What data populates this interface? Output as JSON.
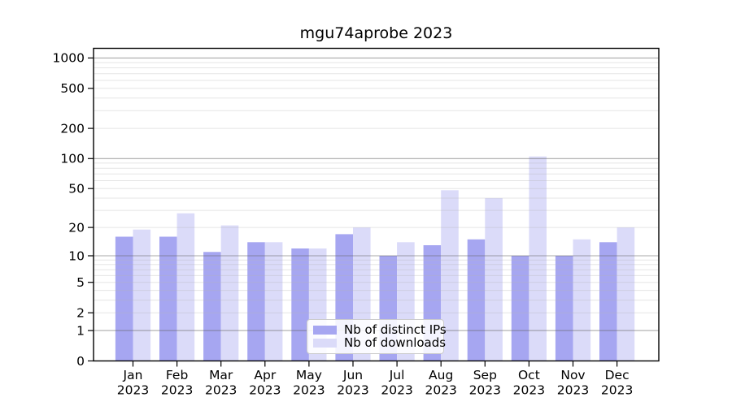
{
  "title": "mgu74aprobe 2023",
  "chart_data": {
    "type": "bar",
    "title": "mgu74aprobe 2023",
    "categories": [
      "Jan",
      "Feb",
      "Mar",
      "Apr",
      "May",
      "Jun",
      "Jul",
      "Aug",
      "Sep",
      "Oct",
      "Nov",
      "Dec"
    ],
    "x_year": "2023",
    "series": [
      {
        "name": "Nb of distinct IPs",
        "color": "#a6a6f1",
        "values": [
          16,
          16,
          11,
          14,
          12,
          17,
          10,
          13,
          15,
          10,
          10,
          14
        ]
      },
      {
        "name": "Nb of downloads",
        "color": "#dbdbf9",
        "values": [
          19,
          28,
          21,
          14,
          12,
          20,
          14,
          48,
          40,
          105,
          15,
          20
        ]
      }
    ],
    "y_ticks": [
      0,
      1,
      2,
      5,
      10,
      20,
      50,
      100,
      200,
      500,
      1000
    ],
    "y_scale": "log1p",
    "ylim": [
      0,
      1200
    ],
    "grid": {
      "major": [
        1,
        10,
        100,
        1000
      ],
      "minor": [
        2,
        3,
        4,
        5,
        6,
        7,
        8,
        9,
        20,
        30,
        40,
        50,
        60,
        70,
        80,
        90,
        200,
        300,
        400,
        500,
        600,
        700,
        800,
        900
      ]
    },
    "legend_position": "lower center",
    "xlabel": "",
    "ylabel": ""
  },
  "colors": {
    "distinct_ips": "#a6a6f1",
    "downloads": "#dbdbf9",
    "axis": "#000000"
  }
}
